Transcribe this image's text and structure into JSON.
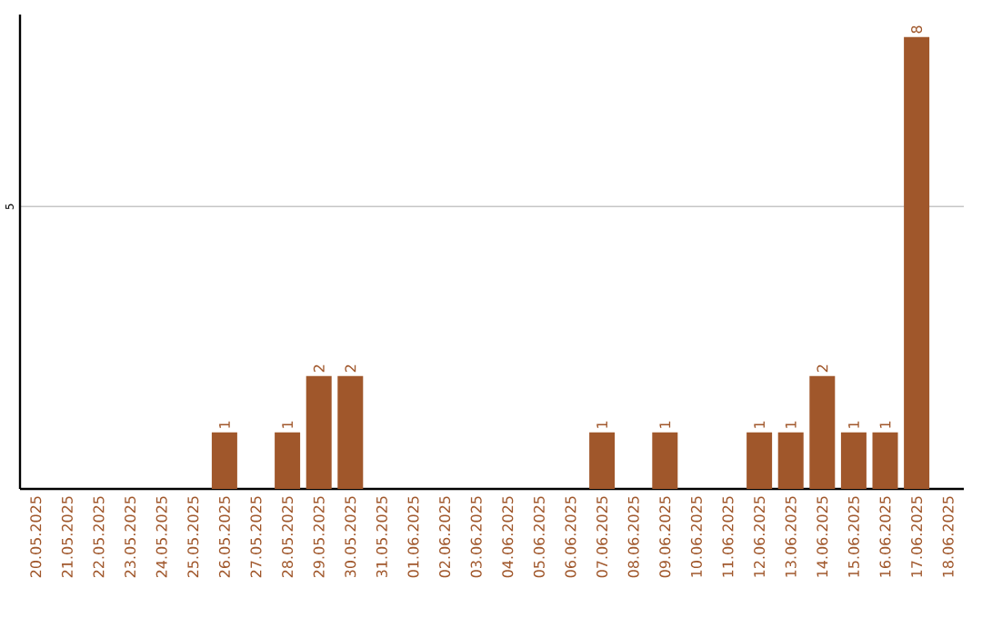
{
  "chart_data": {
    "type": "bar",
    "categories": [
      "20.05.2025",
      "21.05.2025",
      "22.05.2025",
      "23.05.2025",
      "24.05.2025",
      "25.05.2025",
      "26.05.2025",
      "27.05.2025",
      "28.05.2025",
      "29.05.2025",
      "30.05.2025",
      "31.05.2025",
      "01.06.2025",
      "02.06.2025",
      "03.06.2025",
      "04.06.2025",
      "05.06.2025",
      "06.06.2025",
      "07.06.2025",
      "08.06.2025",
      "09.06.2025",
      "10.06.2025",
      "11.06.2025",
      "12.06.2025",
      "13.06.2025",
      "14.06.2025",
      "15.06.2025",
      "16.06.2025",
      "17.06.2025",
      "18.06.2025"
    ],
    "values": [
      0,
      0,
      0,
      0,
      0,
      0,
      1,
      0,
      1,
      2,
      2,
      0,
      0,
      0,
      0,
      0,
      0,
      0,
      1,
      0,
      1,
      0,
      0,
      1,
      1,
      2,
      1,
      1,
      8,
      0
    ],
    "value_labels": [
      null,
      null,
      null,
      null,
      null,
      null,
      "1",
      null,
      "1",
      "2",
      "2",
      null,
      null,
      null,
      null,
      null,
      null,
      null,
      "1",
      null,
      "1",
      null,
      null,
      "1",
      "1",
      "2",
      "1",
      "1",
      "8",
      null
    ],
    "color": "#a0572b",
    "ylim": [
      0,
      8.4
    ],
    "yticks": [
      5
    ],
    "grid": "y"
  }
}
